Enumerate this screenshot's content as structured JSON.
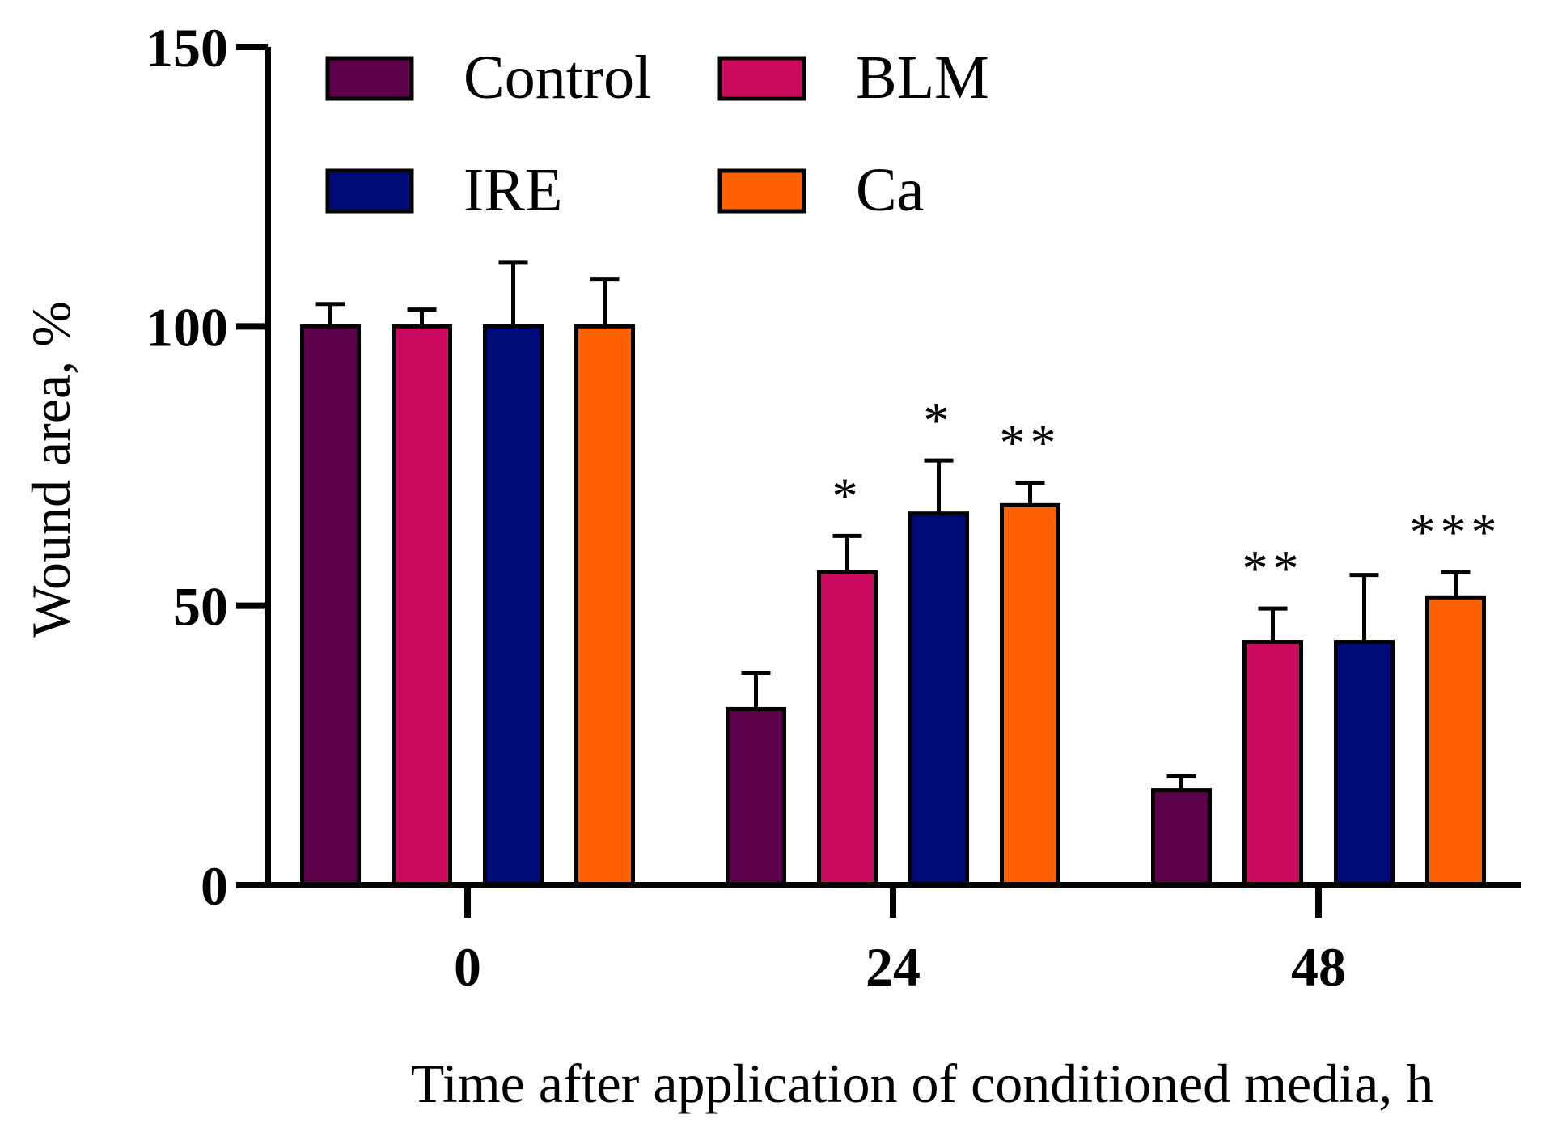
{
  "chart_data": {
    "type": "bar",
    "title": "",
    "xlabel": "Time after application of conditioned media, h",
    "ylabel": "Wound area, %",
    "ylim": [
      0,
      150
    ],
    "yticks": [
      0,
      50,
      100,
      150
    ],
    "categories": [
      "0",
      "24",
      "48"
    ],
    "legend_position": "top",
    "grid": false,
    "series": [
      {
        "name": "Control",
        "color": "#5c0049",
        "values": [
          100,
          31.5,
          17
        ],
        "errors": [
          4,
          6.5,
          2.5
        ],
        "significance": [
          "",
          "",
          ""
        ]
      },
      {
        "name": "BLM",
        "color": "#cc0b5e",
        "values": [
          100,
          56,
          43.5
        ],
        "errors": [
          3,
          6.5,
          6
        ],
        "significance": [
          "",
          "*",
          "**"
        ]
      },
      {
        "name": "IRE",
        "color": "#000b7a",
        "values": [
          100,
          66.5,
          43.5
        ],
        "errors": [
          11.5,
          9.5,
          12
        ],
        "significance": [
          "",
          "*",
          ""
        ]
      },
      {
        "name": "Ca",
        "color": "#ff6100",
        "values": [
          100,
          68,
          51.5
        ],
        "errors": [
          8.5,
          4,
          4.5
        ],
        "significance": [
          "",
          "**",
          "***"
        ]
      }
    ]
  }
}
